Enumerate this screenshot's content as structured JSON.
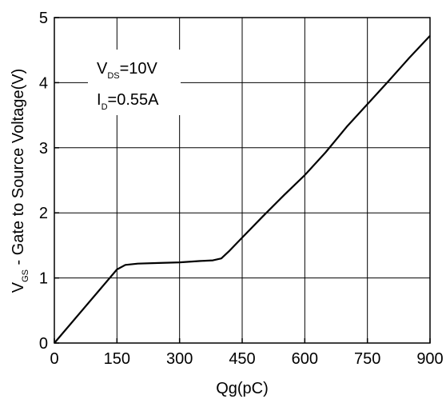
{
  "chart_data": {
    "type": "line",
    "title": "",
    "xlabel": "Qg(pC)",
    "ylabel_main": "V",
    "ylabel_sub": "GS",
    "ylabel_rest": " - Gate to Source Voltage(V)",
    "xlim": [
      0,
      900
    ],
    "ylim": [
      0,
      5
    ],
    "xticks": [
      "0",
      "150",
      "300",
      "450",
      "600",
      "750",
      "900"
    ],
    "yticks": [
      "0",
      "1",
      "2",
      "3",
      "4",
      "5"
    ],
    "grid": true,
    "annotations": {
      "line1_main": "V",
      "line1_sub": "DS",
      "line1_rest": "=10V",
      "line2_main": "I",
      "line2_sub": "D",
      "line2_rest": "=0.55A"
    },
    "series": [
      {
        "x": [
          0,
          150,
          170,
          200,
          250,
          300,
          350,
          380,
          400,
          420,
          450,
          500,
          550,
          600,
          650,
          700,
          750,
          800,
          850,
          900
        ],
        "y": [
          0,
          1.13,
          1.2,
          1.22,
          1.23,
          1.24,
          1.26,
          1.27,
          1.3,
          1.42,
          1.62,
          1.95,
          2.27,
          2.58,
          2.93,
          3.32,
          3.67,
          4.02,
          4.38,
          4.72
        ]
      }
    ]
  }
}
